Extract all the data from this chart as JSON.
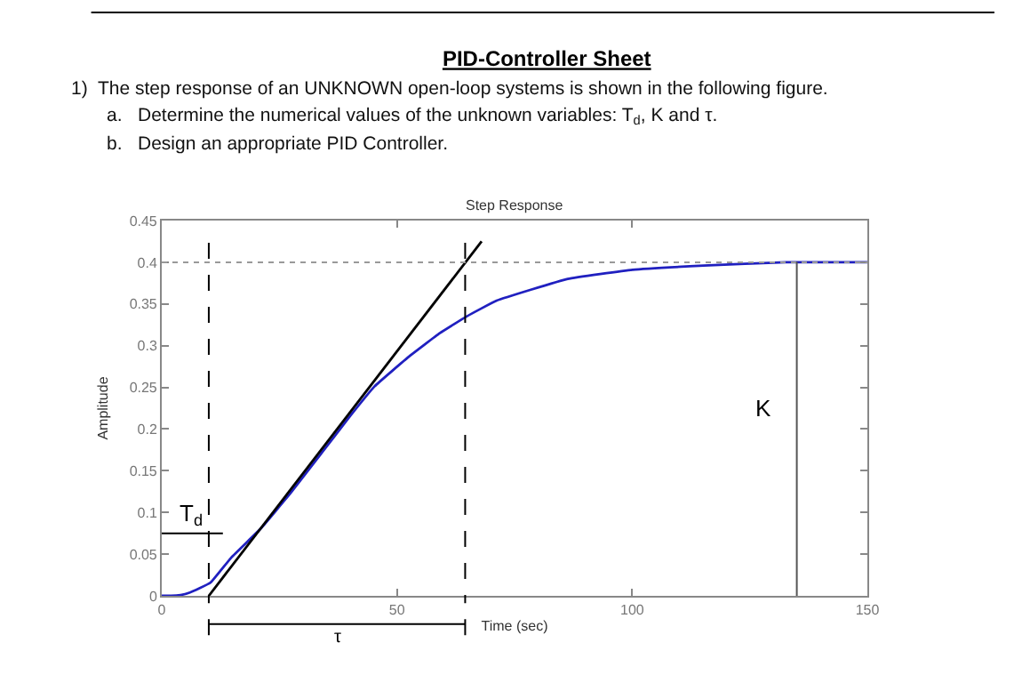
{
  "chart_data": {
    "type": "line",
    "title": "PID-Controller Sheet",
    "subtitle": "Step Response",
    "xlabel": "Time (sec)",
    "ylabel": "Amplitude",
    "annotations": [
      "1)  The step response of an UNKNOWN open-loop systems is shown in the following figure.",
      "a.   Determine the numerical values of the unknown variables: T$_{d}$, K and τ.",
      "b.   Design an appropriate PID Controller.",
      {
        "text": "T$_{d}$",
        "x": 10,
        "y": 0.075
      },
      "τ"
    ],
    "series": [
      {
        "color": "#2020c0",
        "x": [
          0,
          2,
          4,
          6,
          8,
          10.4,
          14.8,
          21.1,
          27.5,
          33.8,
          40.1,
          45.2,
          52.8,
          59.1,
          64.8,
          71.2,
          86.3,
          100.1,
          115.2,
          132.7,
          150
        ],
        "values": [
          0,
          0,
          0.001,
          0.004,
          0.009,
          0.016,
          0.046,
          0.081,
          0.124,
          0.17,
          0.216,
          0.251,
          0.288,
          0.315,
          0.335,
          0.354,
          0.38,
          0.391,
          0.396,
          0.4,
          0.4
        ]
      },
      {
        "color": "#000000",
        "x": [
          10,
          68
        ],
        "values": [
          0,
          0.425
        ]
      }
    ],
    "ref_lines": [
      {
        "axis": "y",
        "value": 0.4,
        "color": "#999999",
        "line_style": "dotted"
      },
      {
        "axis": "x",
        "value": 10,
        "color": "#000000",
        "line_style": "dashed"
      },
      {
        "axis": "x",
        "value": 64.5,
        "color": "#000000",
        "line_style": "dashed"
      },
      {
        "axis": "x",
        "value": 135,
        "label": "K",
        "color": "#555555",
        "line_style": "solid"
      }
    ],
    "xlim": [
      0,
      150
    ],
    "xticks": [
      0,
      50,
      100,
      150
    ],
    "ylim": [
      0,
      0.45
    ],
    "yticks": [
      0,
      0.05,
      0.1,
      0.15,
      0.2,
      0.25,
      0.3,
      0.35,
      0.4,
      0.45
    ],
    "marker": "none",
    "line_style": "solid"
  }
}
